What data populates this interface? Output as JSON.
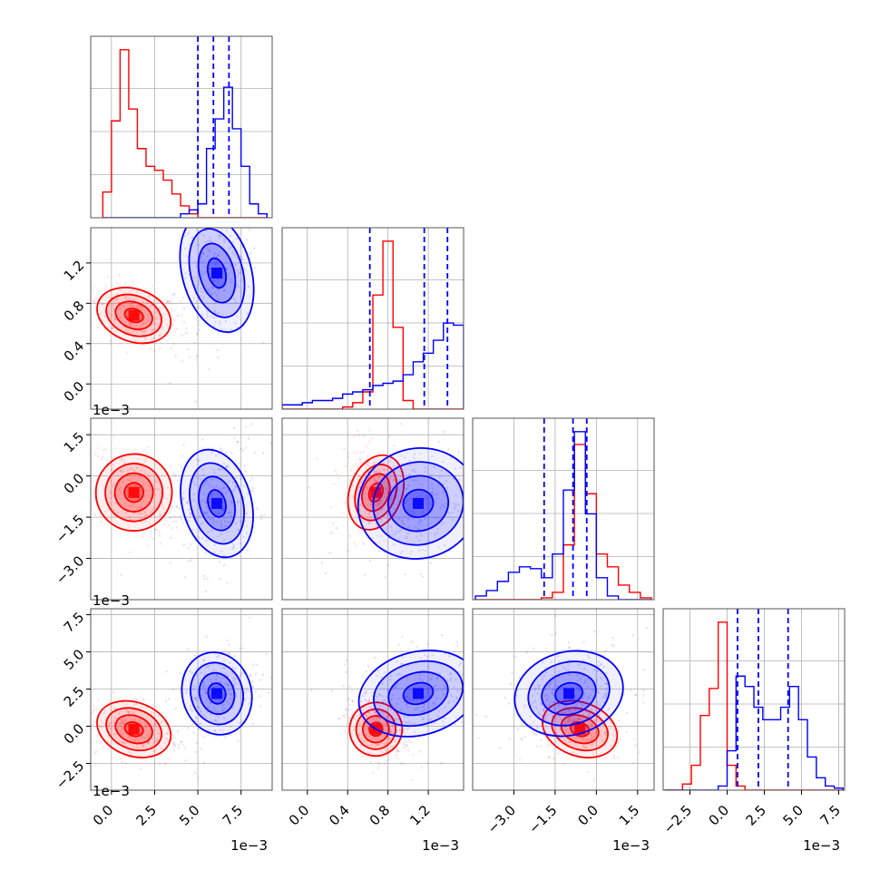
{
  "chart_data": {
    "type": "corner",
    "grid": true,
    "series": [
      {
        "color": "#ff0000"
      },
      {
        "color": "#0000ff"
      }
    ],
    "params": [
      {
        "range": [
          -0.0012,
          0.0093
        ],
        "ticks": [
          0.0,
          2.5,
          5.0,
          7.5
        ],
        "tick_labels": [
          "0.0",
          "2.5",
          "5.0",
          "7.5"
        ],
        "multiplier": "1e−3"
      },
      {
        "range": [
          -0.00025,
          0.00155
        ],
        "ticks": [
          0.0,
          0.4,
          0.8,
          1.2
        ],
        "tick_labels": [
          "0.0",
          "0.4",
          "0.8",
          "1.2"
        ],
        "multiplier": "1e−3"
      },
      {
        "range": [
          -0.0045,
          0.0021
        ],
        "ticks": [
          -3.0,
          -1.5,
          0.0,
          1.5
        ],
        "tick_labels": [
          "−3.0",
          "−1.5",
          "0.0",
          "1.5"
        ],
        "multiplier": "1e−3"
      },
      {
        "range": [
          -0.0043,
          0.0079
        ],
        "ticks": [
          -2.5,
          0.0,
          2.5,
          5.0,
          7.5
        ],
        "tick_labels": [
          "−2.5",
          "0.0",
          "2.5",
          "5.0",
          "7.5"
        ],
        "multiplier": "1e−3"
      }
    ],
    "histograms": [
      {
        "bin_edges": [
          -0.0005,
          0.0,
          0.0005,
          0.001,
          0.0015,
          0.002,
          0.0025,
          0.003,
          0.0035,
          0.004,
          0.0045,
          0.005,
          0.0055,
          0.006,
          0.0065,
          0.007,
          0.0075,
          0.008,
          0.0085,
          0.009
        ],
        "red": [
          0.13,
          0.49,
          0.85,
          0.55,
          0.35,
          0.26,
          0.24,
          0.19,
          0.12,
          0.06,
          0.02,
          0.0,
          0.0,
          0.0,
          0.0,
          0.0,
          0.0,
          0.0,
          0.0
        ],
        "blue": [
          0.0,
          0.0,
          0.0,
          0.0,
          0.0,
          0.0,
          0.0,
          0.0,
          0.0,
          0.02,
          0.04,
          0.07,
          0.35,
          0.5,
          0.66,
          0.45,
          0.26,
          0.07,
          0.02
        ],
        "blue_quantiles": [
          0.005,
          0.0059,
          0.0068
        ]
      },
      {
        "bin_edges": [
          -0.00025,
          -0.00015,
          -5e-05,
          5e-05,
          0.00015,
          0.00025,
          0.00035,
          0.00045,
          0.00055,
          0.00065,
          0.00075,
          0.00085,
          0.00095,
          0.00105,
          0.00115,
          0.00125,
          0.00135,
          0.00145,
          0.00155
        ],
        "red": [
          0.0,
          0.0,
          0.0,
          0.0,
          0.0,
          0.0,
          0.01,
          0.03,
          0.08,
          0.53,
          0.78,
          0.38,
          0.04,
          0.0,
          0.0,
          0.0,
          0.0,
          0.0
        ],
        "blue": [
          0.02,
          0.02,
          0.03,
          0.04,
          0.04,
          0.05,
          0.07,
          0.08,
          0.09,
          0.11,
          0.12,
          0.13,
          0.16,
          0.22,
          0.26,
          0.32,
          0.4,
          0.39
        ],
        "blue_quantiles": [
          0.00062,
          0.00116,
          0.00139
        ]
      },
      {
        "bin_edges": [
          -0.0044,
          -0.004,
          -0.0036,
          -0.0032,
          -0.0028,
          -0.0024,
          -0.002,
          -0.0016,
          -0.0012,
          -0.0008,
          -0.0004,
          0.0,
          0.0004,
          0.0008,
          0.0012,
          0.0016,
          0.002
        ],
        "red": [
          0.0,
          0.0,
          0.0,
          0.0,
          0.0,
          0.0,
          0.01,
          0.04,
          0.3,
          0.85,
          0.58,
          0.25,
          0.18,
          0.08,
          0.04,
          0.01
        ],
        "blue": [
          0.02,
          0.05,
          0.1,
          0.15,
          0.18,
          0.17,
          0.12,
          0.25,
          0.6,
          0.92,
          0.47,
          0.12,
          0.02,
          0.0,
          0.0,
          0.0
        ],
        "blue_quantiles": [
          -0.0019,
          -0.00085,
          -0.00035
        ]
      },
      {
        "bin_edges": [
          -0.0042,
          -0.0036,
          -0.003,
          -0.0024,
          -0.0018,
          -0.0012,
          -0.0006,
          0.0,
          0.0006,
          0.0012,
          0.0018,
          0.0024,
          0.003,
          0.0036,
          0.0042,
          0.0048,
          0.0054,
          0.006,
          0.0066,
          0.0072,
          0.0078
        ],
        "red": [
          0.0,
          0.0,
          0.03,
          0.12,
          0.36,
          0.49,
          0.81,
          0.12,
          0.02,
          0.0,
          0.0,
          0.0,
          0.0,
          0.0,
          0.0,
          0.0,
          0.0,
          0.0,
          0.0,
          0.0
        ],
        "blue": [
          0.0,
          0.0,
          0.0,
          0.0,
          0.0,
          0.0,
          0.02,
          0.19,
          0.55,
          0.5,
          0.4,
          0.34,
          0.34,
          0.4,
          0.5,
          0.34,
          0.16,
          0.06,
          0.02,
          0.01
        ],
        "blue_quantiles": [
          0.0007,
          0.0021,
          0.0041
        ]
      }
    ],
    "posteriors": {
      "red": {
        "mean": [
          0.0013,
          0.00068,
          -0.0006,
          -0.0002
        ],
        "std": [
          0.0011,
          0.00013,
          0.0007,
          0.0009
        ]
      },
      "blue": {
        "mean": [
          0.0061,
          0.0011,
          -0.001,
          0.0022
        ],
        "std": [
          0.001,
          0.0003,
          0.001,
          0.0014
        ]
      }
    }
  }
}
